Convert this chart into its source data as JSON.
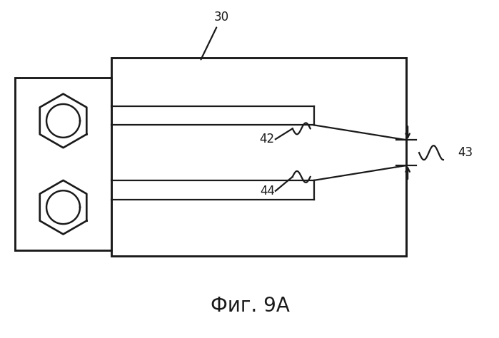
{
  "title": "Фиг. 9А",
  "title_fontsize": 20,
  "bg_color": "#ffffff",
  "line_color": "#1a1a1a",
  "label_30": "30",
  "label_42": "42",
  "label_43": "43",
  "label_44": "44",
  "label_fontsize": 12,
  "lw": 1.6,
  "fig_w": 6.99,
  "fig_h": 4.74
}
